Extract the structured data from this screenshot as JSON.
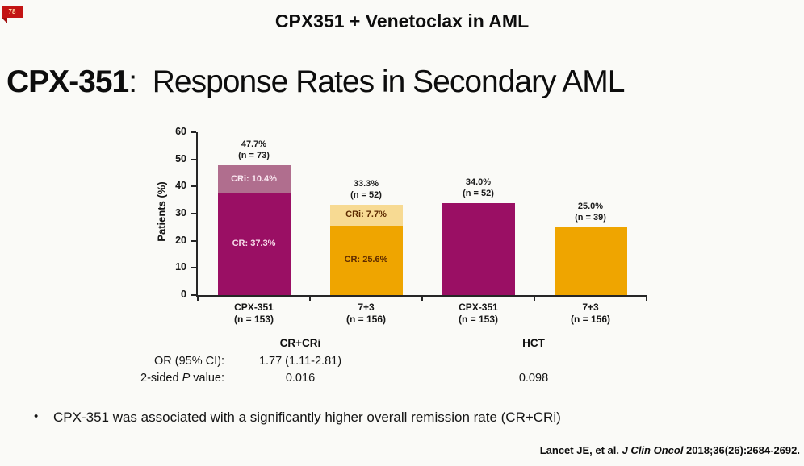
{
  "corner_tag": "78",
  "header": {
    "title": "CPX351 + Venetoclax in AML"
  },
  "slide_title": {
    "bold": "CPX-351",
    "rest": ":  Response Rates in Secondary AML"
  },
  "chart_data": {
    "type": "bar",
    "stacked": true,
    "ylabel": "Patients (%)",
    "ylim": [
      0,
      60
    ],
    "yticks": [
      0,
      10,
      20,
      30,
      40,
      50,
      60
    ],
    "grid": false,
    "legend": "none",
    "group_labels": [
      "CR+CRi",
      "HCT"
    ],
    "colors": {
      "cpx351_cr": "#9a0f64",
      "cpx351_cri": "#b06e8e",
      "seven_plus_3_cr": "#efa500",
      "seven_plus_3_cri": "#f7da93"
    },
    "bars": [
      {
        "category": "CPX-351",
        "n": "(n = 153)",
        "group": "CR+CRi",
        "total": 47.7,
        "total_label": "47.7%",
        "total_n": "(n = 73)",
        "segments": [
          {
            "name": "CR",
            "label": "CR: 37.3%",
            "value": 37.3,
            "color": "#9a0f64",
            "text_color": "#f7dcea"
          },
          {
            "name": "CRi",
            "label": "CRi: 10.4%",
            "value": 10.4,
            "color": "#b06e8e",
            "text_color": "#f9e6f0"
          }
        ]
      },
      {
        "category": "7+3",
        "n": "(n = 156)",
        "group": "CR+CRi",
        "total": 33.3,
        "total_label": "33.3%",
        "total_n": "(n = 52)",
        "segments": [
          {
            "name": "CR",
            "label": "CR: 25.6%",
            "value": 25.6,
            "color": "#efa500",
            "text_color": "#5d2a00"
          },
          {
            "name": "CRi",
            "label": "CRi: 7.7%",
            "value": 7.7,
            "color": "#f7da93",
            "text_color": "#5d2a00"
          }
        ]
      },
      {
        "category": "CPX-351",
        "n": "(n = 153)",
        "group": "HCT",
        "total": 34.0,
        "total_label": "34.0%",
        "total_n": "(n = 52)",
        "segments": [
          {
            "name": "HCT",
            "label": "",
            "value": 34.0,
            "color": "#9a0f64",
            "text_color": "#f7dcea"
          }
        ]
      },
      {
        "category": "7+3",
        "n": "(n = 156)",
        "group": "HCT",
        "total": 25.0,
        "total_label": "25.0%",
        "total_n": "(n = 39)",
        "segments": [
          {
            "name": "HCT",
            "label": "",
            "value": 25.0,
            "color": "#efa500",
            "text_color": "#5d2a00"
          }
        ]
      }
    ]
  },
  "stats": {
    "or_row_label": "OR (95% CI):",
    "p_row_label_pre": "2-sided ",
    "p_row_label_italic": "P",
    "p_row_label_post": " value:",
    "cr_cri_or": "1.77 (1.11-2.81)",
    "cr_cri_p": "0.016",
    "hct_p": "0.098"
  },
  "bullet": {
    "marker": "•",
    "text": "CPX-351 was associated with a significantly higher overall remission rate (CR+CRi)"
  },
  "citation": {
    "pre": "Lancet JE, et al. ",
    "italic": "J Clin Oncol",
    "post": " 2018;36(26):2684-2692."
  }
}
